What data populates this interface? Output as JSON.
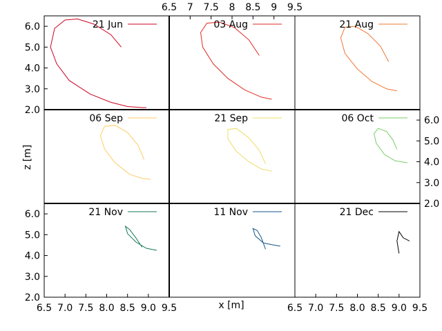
{
  "chart_data": {
    "type": "line",
    "xlabel": "x [m]",
    "ylabel": "z [m]",
    "xlim": [
      6.5,
      9.5
    ],
    "ylim": [
      2.0,
      6.5
    ],
    "xticks": [
      "6.5",
      "7",
      "7.5",
      "8",
      "8.5",
      "9",
      "9.5"
    ],
    "xticks_bottom": [
      "6.5",
      "7.0",
      "7.5",
      "8.0",
      "8.5",
      "9.0",
      "9.5"
    ],
    "yticks": [
      "2.0",
      "3.0",
      "4.0",
      "5.0",
      "6.0"
    ],
    "legend_position": "top-right",
    "grid": false,
    "panels": [
      {
        "name": "21 Jun",
        "color": "#cc0022",
        "x": [
          8.35,
          8.1,
          7.7,
          7.3,
          7.0,
          6.75,
          6.65,
          6.8,
          7.1,
          7.6,
          8.1,
          8.5,
          8.85,
          8.95
        ],
        "z": [
          5.0,
          5.6,
          6.1,
          6.35,
          6.3,
          5.9,
          5.0,
          4.2,
          3.4,
          2.75,
          2.35,
          2.15,
          2.1,
          2.1
        ]
      },
      {
        "name": "03 Aug",
        "color": "#dd2a22",
        "x": [
          8.65,
          8.4,
          8.05,
          7.7,
          7.4,
          7.25,
          7.3,
          7.55,
          7.9,
          8.3,
          8.7,
          8.95
        ],
        "z": [
          4.6,
          5.35,
          5.95,
          6.2,
          6.15,
          5.7,
          5.0,
          4.2,
          3.5,
          2.95,
          2.6,
          2.5
        ]
      },
      {
        "name": "21 Aug",
        "color": "#ee7733",
        "x": [
          8.75,
          8.55,
          8.25,
          7.95,
          7.7,
          7.6,
          7.7,
          8.0,
          8.35,
          8.7,
          8.95
        ],
        "z": [
          4.3,
          5.05,
          5.65,
          6.0,
          5.95,
          5.45,
          4.7,
          3.95,
          3.35,
          3.0,
          2.9
        ]
      },
      {
        "name": "06 Sep",
        "color": "#ffcc66",
        "x": [
          8.9,
          8.75,
          8.5,
          8.2,
          7.95,
          7.85,
          7.95,
          8.2,
          8.55,
          8.85,
          9.05
        ],
        "z": [
          4.1,
          4.8,
          5.4,
          5.75,
          5.7,
          5.25,
          4.6,
          3.95,
          3.4,
          3.2,
          3.15
        ]
      },
      {
        "name": "21 Sep",
        "color": "#eedd66",
        "x": [
          8.8,
          8.65,
          8.4,
          8.1,
          7.9,
          7.9,
          8.1,
          8.4,
          8.7,
          8.95
        ],
        "z": [
          3.9,
          4.55,
          5.15,
          5.6,
          5.55,
          5.1,
          4.5,
          4.0,
          3.65,
          3.55
        ]
      },
      {
        "name": "06 Oct",
        "color": "#77cc66",
        "x": [
          8.95,
          8.85,
          8.7,
          8.5,
          8.4,
          8.45,
          8.65,
          8.9,
          9.2
        ],
        "z": [
          4.6,
          5.05,
          5.45,
          5.6,
          5.35,
          4.9,
          4.35,
          4.05,
          3.95
        ]
      },
      {
        "name": "21 Nov",
        "color": "#117755",
        "x": [
          8.85,
          8.7,
          8.55,
          8.45,
          8.5,
          8.7,
          8.95,
          9.2
        ],
        "z": [
          4.4,
          4.85,
          5.25,
          5.4,
          5.05,
          4.65,
          4.35,
          4.25
        ]
      },
      {
        "name": "11 Nov",
        "color": "#115588",
        "x": [
          8.8,
          8.7,
          8.6,
          8.5,
          8.55,
          8.75,
          9.0,
          9.15
        ],
        "z": [
          4.3,
          4.85,
          5.2,
          5.3,
          4.95,
          4.6,
          4.5,
          4.45
        ]
      },
      {
        "name": "21 Dec",
        "color": "#000000",
        "x": [
          9.0,
          8.95,
          9.0,
          9.1,
          9.25
        ],
        "z": [
          4.1,
          4.7,
          5.15,
          4.85,
          4.7
        ]
      }
    ]
  }
}
